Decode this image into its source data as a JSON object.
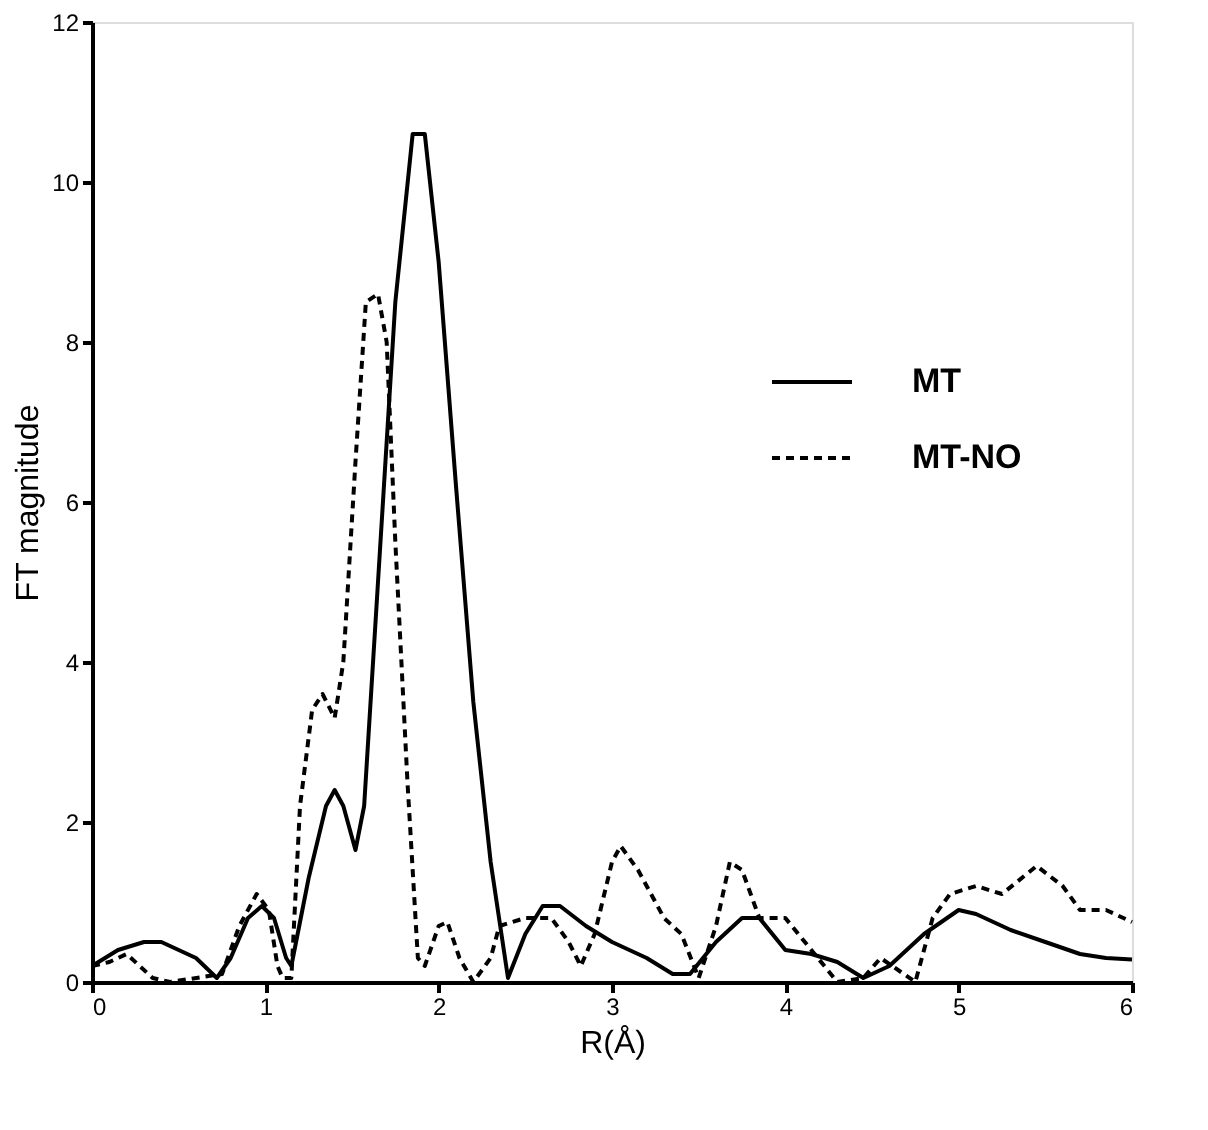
{
  "chart_data": {
    "type": "line",
    "xlabel": "R(Å)",
    "ylabel": "FT magnitude",
    "xlim": [
      0,
      6
    ],
    "ylim": [
      0,
      12
    ],
    "xticks": [
      0,
      1,
      2,
      3,
      4,
      5,
      6
    ],
    "yticks": [
      0,
      2,
      4,
      6,
      8,
      10,
      12
    ],
    "grid": false,
    "legend": "right",
    "marker": "none",
    "series": [
      {
        "name": "MT",
        "color": "#000000",
        "line_style": "solid",
        "x": [
          0,
          0.15,
          0.3,
          0.4,
          0.6,
          0.72,
          0.8,
          0.9,
          0.98,
          1.05,
          1.12,
          1.15,
          1.25,
          1.35,
          1.4,
          1.45,
          1.52,
          1.57,
          1.65,
          1.75,
          1.85,
          1.92,
          2.0,
          2.1,
          2.2,
          2.3,
          2.4,
          2.5,
          2.6,
          2.7,
          2.85,
          3.0,
          3.2,
          3.35,
          3.45,
          3.6,
          3.75,
          3.85,
          4.0,
          4.15,
          4.3,
          4.45,
          4.6,
          4.8,
          5.0,
          5.1,
          5.3,
          5.5,
          5.7,
          5.85,
          6.0
        ],
        "values": [
          0.2,
          0.4,
          0.5,
          0.5,
          0.3,
          0.05,
          0.3,
          0.8,
          0.95,
          0.8,
          0.3,
          0.2,
          1.3,
          2.2,
          2.4,
          2.2,
          1.65,
          2.2,
          5,
          8.5,
          10.6,
          10.6,
          9,
          6.2,
          3.5,
          1.5,
          0.05,
          0.6,
          0.95,
          0.95,
          0.7,
          0.5,
          0.3,
          0.1,
          0.1,
          0.5,
          0.8,
          0.8,
          0.4,
          0.35,
          0.25,
          0.05,
          0.2,
          0.6,
          0.9,
          0.85,
          0.65,
          0.5,
          0.35,
          0.3,
          0.28
        ]
      },
      {
        "name": "MT-NO",
        "color": "#000000",
        "line_style": "dashed",
        "x": [
          0,
          0.1,
          0.2,
          0.35,
          0.45,
          0.75,
          0.85,
          0.95,
          1.02,
          1.07,
          1.1,
          1.15,
          1.2,
          1.27,
          1.33,
          1.4,
          1.45,
          1.52,
          1.58,
          1.65,
          1.7,
          1.75,
          1.82,
          1.88,
          1.92,
          2.0,
          2.05,
          2.12,
          2.2,
          2.3,
          2.35,
          2.5,
          2.65,
          2.75,
          2.82,
          2.9,
          3.0,
          3.05,
          3.15,
          3.3,
          3.4,
          3.5,
          3.6,
          3.68,
          3.75,
          3.85,
          4.0,
          4.15,
          4.3,
          4.45,
          4.55,
          4.75,
          4.85,
          4.95,
          5.1,
          5.25,
          5.45,
          5.6,
          5.7,
          5.85,
          6.0
        ],
        "values": [
          0.2,
          0.25,
          0.35,
          0.05,
          0,
          0.1,
          0.7,
          1.1,
          0.9,
          0.2,
          0.05,
          0.05,
          2.2,
          3.4,
          3.6,
          3.3,
          4,
          6.5,
          8.5,
          8.6,
          8,
          5.5,
          2.5,
          0.3,
          0.2,
          0.7,
          0.75,
          0.3,
          0,
          0.3,
          0.7,
          0.8,
          0.8,
          0.5,
          0.2,
          0.6,
          1.5,
          1.7,
          1.4,
          0.8,
          0.6,
          0.05,
          0.7,
          1.5,
          1.4,
          0.8,
          0.8,
          0.4,
          0,
          0.05,
          0.3,
          0,
          0.8,
          1.1,
          1.2,
          1.1,
          1.45,
          1.2,
          0.9,
          0.9,
          0.75
        ]
      }
    ]
  }
}
